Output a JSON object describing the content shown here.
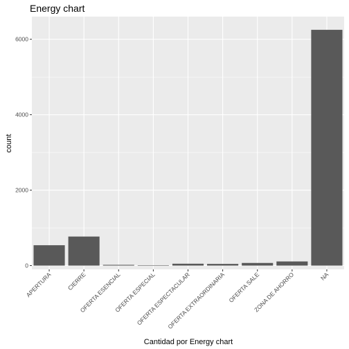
{
  "chart_data": {
    "type": "bar",
    "title": "Energy chart",
    "xlabel": "Cantidad por Energy chart",
    "ylabel": "count",
    "categories": [
      "APERTURA",
      "CIERRE",
      "OFERTA ESENCIAL",
      "OFERTA ESPECIAL",
      "OFERTA ESPECTACULAR",
      "OFERTA EXTRAORDINARIA",
      "OFERTA SALE",
      "ZONA DE AHORRO",
      "NA"
    ],
    "values": [
      540,
      770,
      20,
      5,
      50,
      45,
      70,
      110,
      6250
    ],
    "ylim": [
      -100,
      6600
    ],
    "yticks": [
      0,
      2000,
      4000,
      6000
    ],
    "grid": true,
    "colors": {
      "bar": "#595959",
      "panel": "#ebebeb",
      "grid_major": "#ffffff",
      "tick_text": "#4d4d4d"
    }
  }
}
